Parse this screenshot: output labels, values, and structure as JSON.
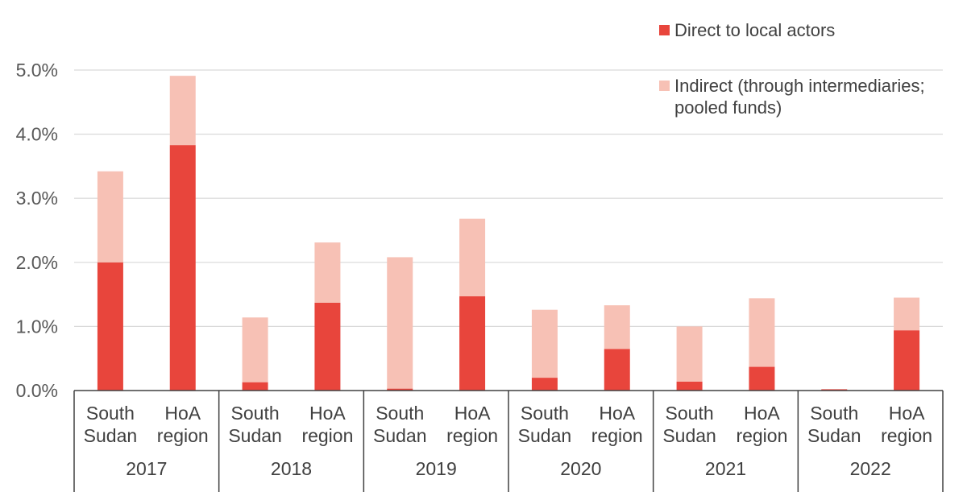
{
  "chart_data": {
    "type": "bar",
    "stacked": true,
    "years": [
      "2017",
      "2018",
      "2019",
      "2020",
      "2021",
      "2022"
    ],
    "group_categories": [
      "South Sudan",
      "HoA region"
    ],
    "category_lines": [
      [
        "South",
        "Sudan"
      ],
      [
        "HoA",
        "region"
      ]
    ],
    "series": [
      {
        "name": "Direct to local actors",
        "color": "#e8453c",
        "values": [
          2.0,
          3.83,
          0.13,
          1.37,
          0.03,
          1.47,
          0.2,
          0.65,
          0.14,
          0.37,
          0.02,
          0.94
        ]
      },
      {
        "name": "Indirect (through intermediaries; pooled funds)",
        "legend_lines": [
          "Indirect (through intermediaries;",
          "pooled funds)"
        ],
        "color": "#f7c1b5",
        "values": [
          1.42,
          1.08,
          1.01,
          0.94,
          2.05,
          1.21,
          1.06,
          0.68,
          0.86,
          1.07,
          0.0,
          0.51
        ]
      }
    ],
    "y_ticks": [
      "0.0%",
      "1.0%",
      "2.0%",
      "3.0%",
      "4.0%",
      "5.0%"
    ],
    "ylim": [
      0,
      5
    ],
    "grid": true,
    "legend_position": "top-right"
  }
}
